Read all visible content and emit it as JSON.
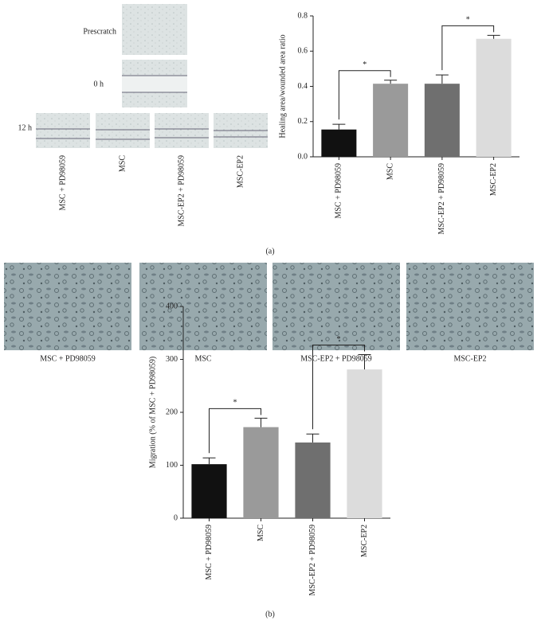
{
  "chart_data": [
    {
      "type": "bar",
      "y_label": "Healing area/wounded area ratio",
      "categories": [
        "MSC + PD98059",
        "MSC",
        "MSC-EP2 + PD98059",
        "MSC-EP2"
      ],
      "values": [
        0.155,
        0.415,
        0.415,
        0.67
      ],
      "errors": [
        0.03,
        0.02,
        0.05,
        0.02
      ],
      "colors": [
        "#111111",
        "#9a9a9a",
        "#6f6f6f",
        "#dcdcdc"
      ],
      "ylim": [
        0,
        0.8
      ],
      "yticks": [
        {
          "value": 0,
          "label": "0.0"
        },
        0.2,
        0.4,
        0.6,
        0.8
      ],
      "significance": [
        {
          "label": "*",
          "between": [
            "MSC + PD98059",
            "MSC"
          ]
        },
        {
          "label": "*",
          "between": [
            "MSC-EP2 + PD98059",
            "MSC-EP2"
          ]
        }
      ]
    },
    {
      "type": "bar",
      "y_label": "Migration (% of MSC + PD98059)",
      "categories": [
        "MSC + PD98059",
        "MSC",
        "MSC-EP2 + PD98059",
        "MSC-EP2"
      ],
      "values": [
        102,
        172,
        143,
        281
      ],
      "errors": [
        12,
        17,
        16,
        28
      ],
      "colors": [
        "#111111",
        "#9a9a9a",
        "#6f6f6f",
        "#dcdcdc"
      ],
      "ylim": [
        0,
        400
      ],
      "yticks": [
        0,
        100,
        200,
        300,
        400
      ],
      "significance": [
        {
          "label": "*",
          "between": [
            "MSC + PD98059",
            "MSC"
          ]
        },
        {
          "label": "*",
          "between": [
            "MSC-EP2 + PD98059",
            "MSC-EP2"
          ]
        }
      ]
    }
  ],
  "panel_a": {
    "row_labels": [
      "Prescratch",
      "0 h",
      "12 h"
    ],
    "image_labels": [
      "MSC + PD98059",
      "MSC",
      "MSC-EP2 + PD98059",
      "MSC-EP2"
    ],
    "caption": "(a)"
  },
  "panel_b": {
    "image_labels": [
      "MSC + PD98059",
      "MSC",
      "MSC-EP2 + PD98059",
      "MSC-EP2"
    ],
    "caption": "(b)"
  }
}
